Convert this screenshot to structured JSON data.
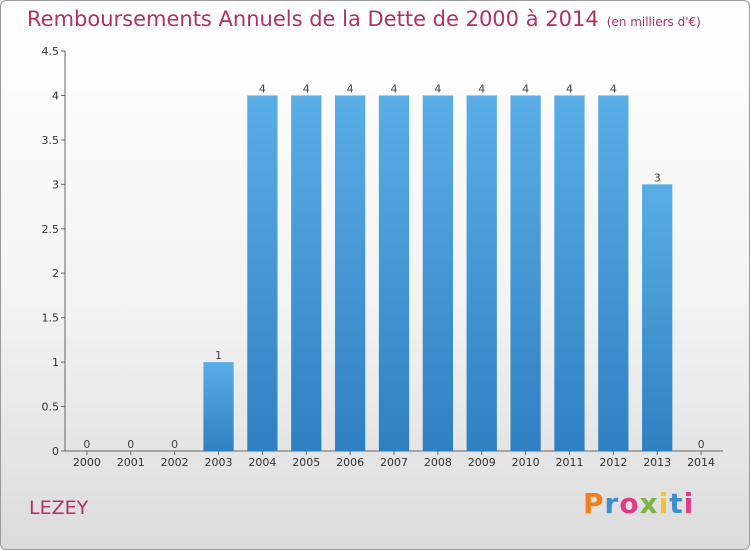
{
  "header": {
    "title": "Remboursements Annuels de la Dette de 2000 à 2014",
    "unit": "(en milliers d'€)"
  },
  "commune": "LEZEY",
  "logo": {
    "text": "Proxiti",
    "colors": [
      "#f07d1c",
      "#3a8fd0",
      "#e23a86",
      "#7cb342",
      "#f2c230",
      "#3a8fd0",
      "#e23a86"
    ]
  },
  "chart_data": {
    "type": "bar",
    "title": "Remboursements Annuels de la Dette de 2000 à 2014",
    "ylabel": "",
    "xlabel": "",
    "categories": [
      "2000",
      "2001",
      "2002",
      "2003",
      "2004",
      "2005",
      "2006",
      "2007",
      "2008",
      "2009",
      "2010",
      "2011",
      "2012",
      "2013",
      "2014"
    ],
    "values": [
      0,
      0,
      0,
      1,
      4,
      4,
      4,
      4,
      4,
      4,
      4,
      4,
      4,
      3,
      0
    ],
    "data_labels": [
      "0",
      "0",
      "0",
      "1",
      "4",
      "4",
      "4",
      "4",
      "4",
      "4",
      "4",
      "4",
      "4",
      "3",
      "0"
    ],
    "ylim": [
      0,
      4.5
    ],
    "yticks": [
      0,
      0.5,
      1,
      1.5,
      2,
      2.5,
      3,
      3.5,
      4,
      4.5
    ],
    "ytick_labels": [
      "0",
      "0.5",
      "1",
      "1.5",
      "2",
      "2.5",
      "3",
      "3.5",
      "4",
      "4.5"
    ],
    "grid": false,
    "bar_color": "#3a95d8"
  }
}
